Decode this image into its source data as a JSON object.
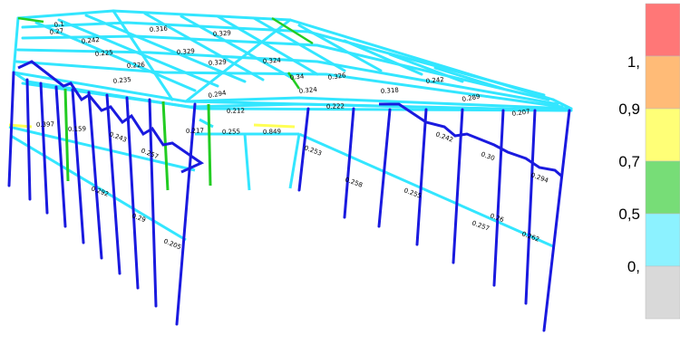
{
  "colors": {
    "blue": "#1a1adf",
    "cyan": "#33e6ff",
    "green": "#22cc22",
    "yellow": "#ffff55",
    "legend_gray": "#d9d9d9",
    "legend_cyan": "#8cf2ff",
    "legend_green": "#77dd77",
    "legend_yellow": "#ffff77",
    "legend_orange": "#ffbb77",
    "legend_red": "#ff7777"
  },
  "legend": {
    "bands": [
      {
        "color": "#ff7777"
      },
      {
        "color": "#ffbb77"
      },
      {
        "color": "#ffff77"
      },
      {
        "color": "#77dd77"
      },
      {
        "color": "#8cf2ff"
      },
      {
        "color": "#d9d9d9"
      }
    ],
    "ticks": [
      "1,",
      "0,9",
      "0,7",
      "0,5",
      "0,"
    ]
  },
  "member_labels": [
    {
      "text": "0.1"
    },
    {
      "text": "0.27"
    },
    {
      "text": "0.242"
    },
    {
      "text": "0.225"
    },
    {
      "text": "0.226"
    },
    {
      "text": "0.235"
    },
    {
      "text": "0.316"
    },
    {
      "text": "0.329"
    },
    {
      "text": "0.329"
    },
    {
      "text": "0.324"
    },
    {
      "text": "0.329"
    },
    {
      "text": "0.34"
    },
    {
      "text": "0.324"
    },
    {
      "text": "0.326"
    },
    {
      "text": "0.318"
    },
    {
      "text": "0.242"
    },
    {
      "text": "0.289"
    },
    {
      "text": "0.207"
    },
    {
      "text": "0.222"
    },
    {
      "text": "0.212"
    },
    {
      "text": "0.294"
    },
    {
      "text": "0.217"
    },
    {
      "text": "0.255"
    },
    {
      "text": "0.849"
    },
    {
      "text": "0.159"
    },
    {
      "text": "0.243"
    },
    {
      "text": "0.242"
    },
    {
      "text": "0.30"
    },
    {
      "text": "0.294"
    },
    {
      "text": "0.257"
    },
    {
      "text": "0.262"
    },
    {
      "text": "0.258"
    },
    {
      "text": "0.255"
    },
    {
      "text": "0.26"
    },
    {
      "text": "0.253"
    },
    {
      "text": "0.292"
    },
    {
      "text": "0.29"
    },
    {
      "text": "0.205"
    },
    {
      "text": "0.257"
    },
    {
      "text": "0.397"
    }
  ]
}
